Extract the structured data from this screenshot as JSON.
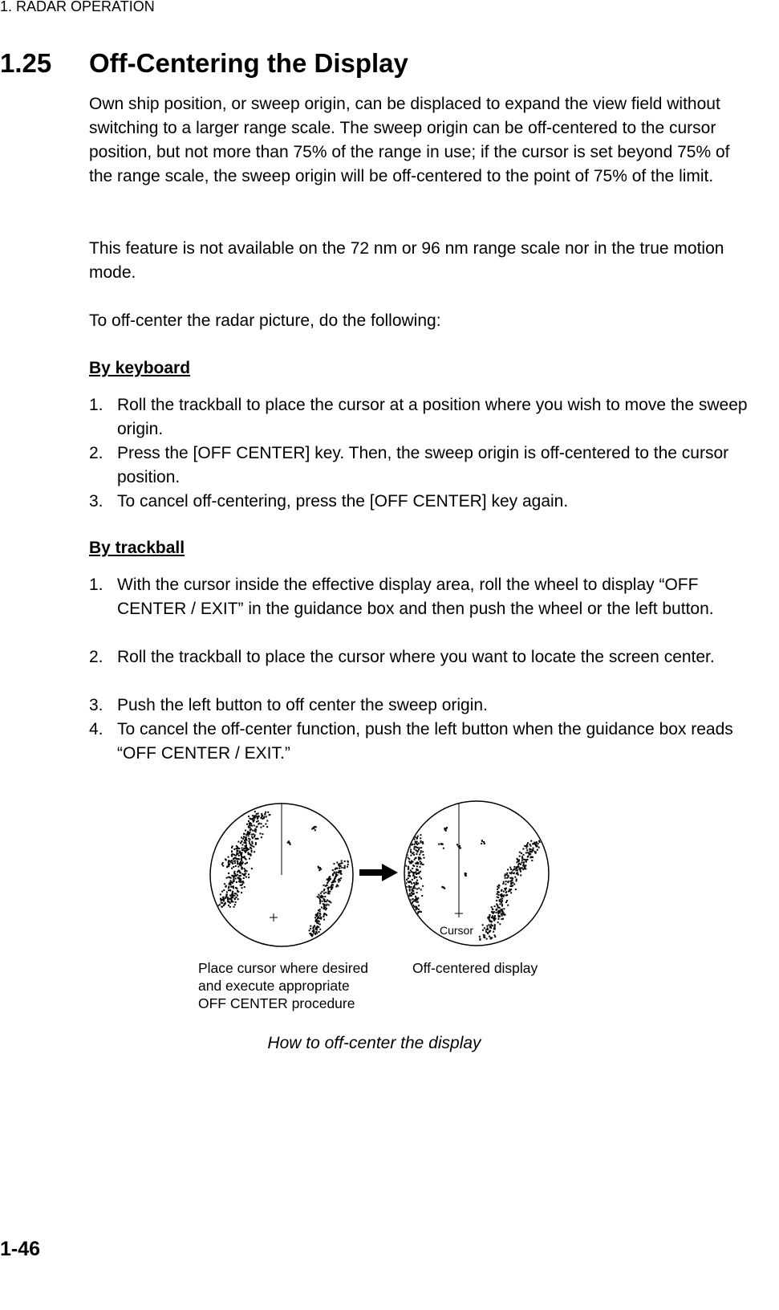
{
  "header": "1. RADAR OPERATION",
  "section": {
    "number": "1.25",
    "title": "Off-Centering the Display"
  },
  "paragraphs": [
    "Own ship position, or sweep origin, can be displaced to expand the view field without switching to a larger range scale. The sweep origin can be off-centered to the cursor position, but not more than 75% of the range in use; if the cursor is set beyond 75% of the range scale, the sweep origin will be off-centered to the point of 75% of the limit.",
    "This feature is not available on the 72 nm or 96 nm range scale nor in the true motion mode.",
    "To off-center the radar picture, do the following:"
  ],
  "keyboard": {
    "heading": "By keyboard",
    "items": [
      {
        "number": "1.",
        "text": "Roll the trackball to place the cursor at a position where you wish to move the sweep origin."
      },
      {
        "number": "2.",
        "text": "Press the [OFF CENTER] key. Then, the sweep origin is off-centered to the cursor position."
      },
      {
        "number": "3.",
        "text": "To cancel off-centering, press the [OFF CENTER] key again."
      }
    ]
  },
  "trackball": {
    "heading": "By trackball",
    "items": [
      {
        "number": "1.",
        "text": "With the cursor inside the effective display area, roll the wheel to display “OFF CENTER / EXIT” in the guidance box and then push the wheel or the left button."
      },
      {
        "number": "2.",
        "text": "Roll the trackball to place the cursor where you want to locate the screen center."
      },
      {
        "number": "3.",
        "text": "Push the left button to off center the sweep origin."
      },
      {
        "number": "4.",
        "text": "To cancel the off-center function, push the left button when the guidance box reads “OFF CENTER / EXIT.”"
      }
    ]
  },
  "figure": {
    "cursor_label": "Cursor",
    "left_label": [
      "Place cursor where desired",
      "and execute appropriate",
      "OFF CENTER procedure"
    ],
    "right_label": "Off-centered display",
    "caption": "How to off-center the display"
  },
  "page_number": "1-46"
}
